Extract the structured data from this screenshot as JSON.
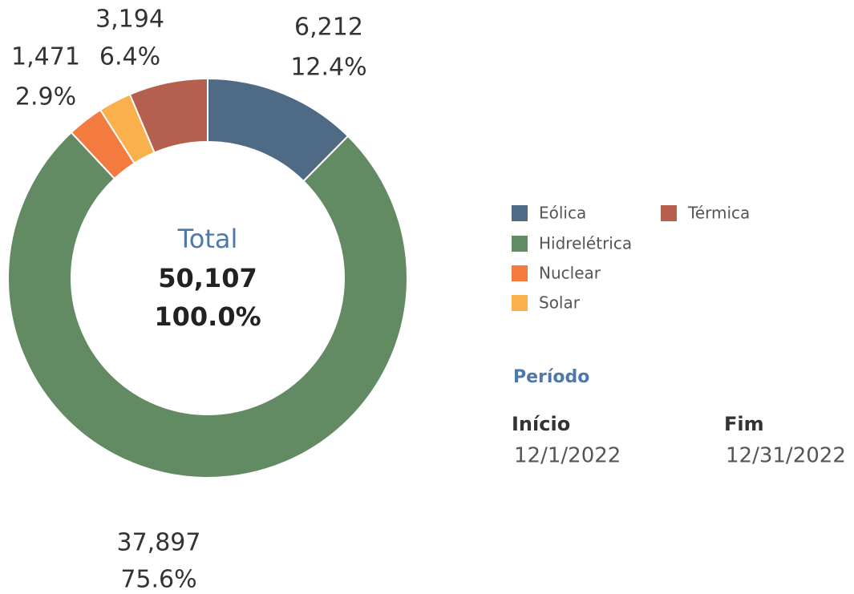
{
  "chart_data": {
    "type": "donut",
    "categories": [
      "Eólica",
      "Hidrelétrica",
      "Nuclear",
      "Solar",
      "Térmica"
    ],
    "values": [
      6212,
      37897,
      1471,
      1333,
      3194
    ],
    "value_labels": [
      "6,212",
      "37,897",
      "1,471",
      null,
      "3,194"
    ],
    "percentages": [
      12.4,
      75.6,
      2.9,
      2.7,
      6.4
    ],
    "percentage_labels": [
      "12.4%",
      "75.6%",
      "2.9%",
      null,
      "6.4%"
    ],
    "colors": [
      "#4e6a85",
      "#628a63",
      "#f47b40",
      "#fbb04e",
      "#b5604f"
    ],
    "center": {
      "title": "Total",
      "value_label": "50,107",
      "percent_label": "100.0%"
    },
    "legend": true
  },
  "period": {
    "title": "Período",
    "start_label": "Início",
    "start": "12/1/2022",
    "end_label": "Fim",
    "end": "12/31/2022"
  }
}
